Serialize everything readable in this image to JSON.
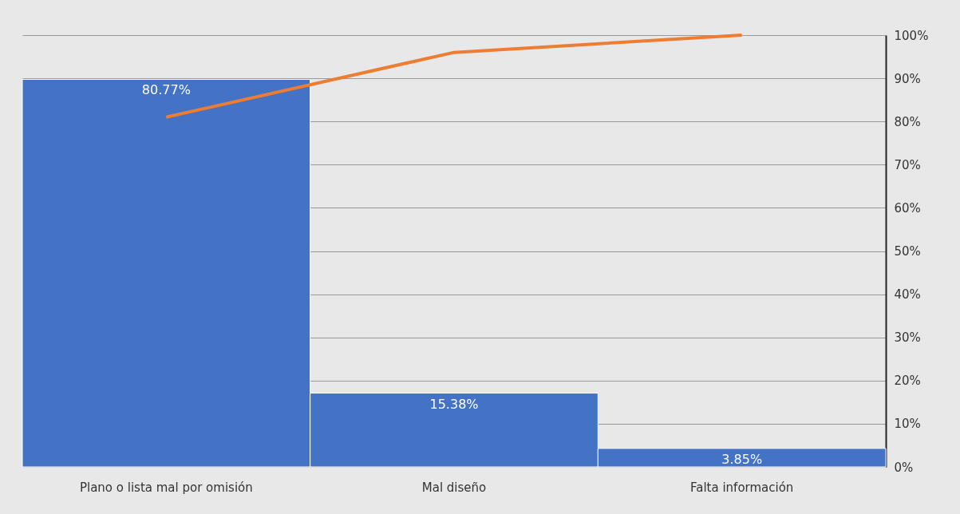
{
  "chart_data": {
    "type": "bar",
    "categories": [
      "Plano o lista mal por omisión",
      "Mal diseño",
      "Falta información"
    ],
    "series": [
      {
        "color": "#4472c4",
        "values": [
          80.77,
          15.38,
          3.85
        ],
        "value_labels": [
          "80.77%",
          "15.38%",
          "3.85%"
        ]
      },
      {
        "type": "line",
        "color": "#ed7d31",
        "axis": "y2",
        "values": [
          81,
          96,
          100
        ]
      }
    ],
    "ylim": [
      0,
      90
    ],
    "y2lim": [
      0,
      100
    ],
    "y2ticks": [
      {
        "value": 0,
        "label": "0%"
      },
      {
        "value": 10,
        "label": "10%"
      },
      {
        "value": 20,
        "label": "20%"
      },
      {
        "value": 30,
        "label": "30%"
      },
      {
        "value": 40,
        "label": "40%"
      },
      {
        "value": 50,
        "label": "50%"
      },
      {
        "value": 60,
        "label": "60%"
      },
      {
        "value": 70,
        "label": "70%"
      },
      {
        "value": 80,
        "label": "80%"
      },
      {
        "value": 90,
        "label": "90%"
      },
      {
        "value": 100,
        "label": "100%"
      }
    ],
    "grid": true,
    "marker": "none"
  }
}
